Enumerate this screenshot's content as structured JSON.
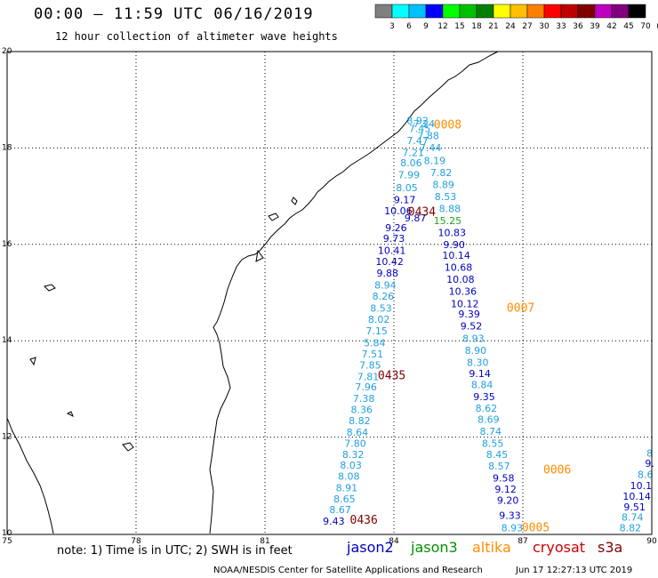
{
  "title": "00:00 – 11:59 UTC 06/16/2019",
  "subtitle": "12 hour collection of altimeter wave heights",
  "colorbar": {
    "colors": [
      "#808080",
      "#00ffff",
      "#00bfff",
      "#0000ff",
      "#00ff00",
      "#00c000",
      "#008000",
      "#ffff00",
      "#ffc000",
      "#ff8000",
      "#ff0000",
      "#c00000",
      "#800000",
      "#c000c0",
      "#800080",
      "#000000"
    ],
    "labels": [
      "3",
      "6",
      "9",
      "12",
      "15",
      "18",
      "21",
      "24",
      "27",
      "30",
      "33",
      "36",
      "39",
      "42",
      "45",
      "70",
      "(ft)"
    ]
  },
  "axes": {
    "x_ticks": [
      "75",
      "78",
      "81",
      "84",
      "87",
      "90"
    ],
    "y_ticks": [
      "20",
      "18",
      "16",
      "14",
      "12",
      "10"
    ]
  },
  "colors": {
    "jason2": "#0000c0",
    "jason3": "#009000",
    "altika": "#ff8c00",
    "cryosat": "#cc0000",
    "s3a": "#800000",
    "light": "#20a0e0",
    "green": "#20a020",
    "darkred": "#800000"
  },
  "tracks": [
    {
      "label": "0008",
      "label_color": "orange",
      "lon": 85.25,
      "lat": 18.4
    },
    {
      "label": "0434",
      "label_color": "darkred",
      "lon": 84.65,
      "lat": 16.6
    },
    {
      "label": "0007",
      "label_color": "orange",
      "lon": 86.95,
      "lat": 14.6
    },
    {
      "label": "0435",
      "label_color": "darkred",
      "lon": 83.95,
      "lat": 13.2
    },
    {
      "label": "0006",
      "label_color": "orange",
      "lon": 87.8,
      "lat": 11.25
    },
    {
      "label": "0436",
      "label_color": "darkred",
      "lon": 83.3,
      "lat": 10.2
    },
    {
      "label": "0005",
      "label_color": "orange",
      "lon": 87.3,
      "lat": 10.05
    }
  ],
  "values": [
    {
      "v": "8.92",
      "c": "light",
      "lon": 84.55,
      "lat": 18.5
    },
    {
      "v": "7.24",
      "c": "light",
      "lon": 84.7,
      "lat": 18.43
    },
    {
      "v": "7.45",
      "c": "light",
      "lon": 84.6,
      "lat": 18.33
    },
    {
      "v": "7.88",
      "c": "light",
      "lon": 84.8,
      "lat": 18.18
    },
    {
      "v": "7.47",
      "c": "light",
      "lon": 84.55,
      "lat": 18.08
    },
    {
      "v": "7.44",
      "c": "light",
      "lon": 84.85,
      "lat": 17.93
    },
    {
      "v": "7.21",
      "c": "light",
      "lon": 84.45,
      "lat": 17.83
    },
    {
      "v": "8.19",
      "c": "light",
      "lon": 84.95,
      "lat": 17.67
    },
    {
      "v": "8.06",
      "c": "light",
      "lon": 84.4,
      "lat": 17.62
    },
    {
      "v": "7.82",
      "c": "light",
      "lon": 85.1,
      "lat": 17.42
    },
    {
      "v": "7.99",
      "c": "light",
      "lon": 84.35,
      "lat": 17.37
    },
    {
      "v": "8.89",
      "c": "light",
      "lon": 85.15,
      "lat": 17.17
    },
    {
      "v": "8.05",
      "c": "light",
      "lon": 84.3,
      "lat": 17.1
    },
    {
      "v": "8.53",
      "c": "light",
      "lon": 85.2,
      "lat": 16.92
    },
    {
      "v": "9.17",
      "c": "jason2",
      "lon": 84.25,
      "lat": 16.85
    },
    {
      "v": "10.06",
      "c": "jason2",
      "lon": 84.1,
      "lat": 16.62
    },
    {
      "v": "8.88",
      "c": "light",
      "lon": 85.3,
      "lat": 16.67
    },
    {
      "v": "9.87",
      "c": "jason2",
      "lon": 84.5,
      "lat": 16.48
    },
    {
      "v": "15.25",
      "c": "green",
      "lon": 85.25,
      "lat": 16.42
    },
    {
      "v": "9.26",
      "c": "jason2",
      "lon": 84.05,
      "lat": 16.27
    },
    {
      "v": "10.83",
      "c": "jason2",
      "lon": 85.35,
      "lat": 16.17
    },
    {
      "v": "9.73",
      "c": "jason2",
      "lon": 84.0,
      "lat": 16.05
    },
    {
      "v": "9.90",
      "c": "jason2",
      "lon": 85.4,
      "lat": 15.92
    },
    {
      "v": "10.41",
      "c": "jason2",
      "lon": 83.95,
      "lat": 15.8
    },
    {
      "v": "10.14",
      "c": "jason2",
      "lon": 85.45,
      "lat": 15.7
    },
    {
      "v": "10.42",
      "c": "jason2",
      "lon": 83.9,
      "lat": 15.57
    },
    {
      "v": "10.68",
      "c": "jason2",
      "lon": 85.5,
      "lat": 15.45
    },
    {
      "v": "9.88",
      "c": "jason2",
      "lon": 83.85,
      "lat": 15.33
    },
    {
      "v": "10.08",
      "c": "jason2",
      "lon": 85.55,
      "lat": 15.2
    },
    {
      "v": "8.94",
      "c": "light",
      "lon": 83.8,
      "lat": 15.08
    },
    {
      "v": "10.36",
      "c": "jason2",
      "lon": 85.6,
      "lat": 14.95
    },
    {
      "v": "8.26",
      "c": "light",
      "lon": 83.75,
      "lat": 14.85
    },
    {
      "v": "10.12",
      "c": "jason2",
      "lon": 85.65,
      "lat": 14.7
    },
    {
      "v": "8.53",
      "c": "light",
      "lon": 83.7,
      "lat": 14.6
    },
    {
      "v": "9.39",
      "c": "jason2",
      "lon": 85.75,
      "lat": 14.48
    },
    {
      "v": "8.02",
      "c": "light",
      "lon": 83.65,
      "lat": 14.37
    },
    {
      "v": "9.52",
      "c": "jason2",
      "lon": 85.8,
      "lat": 14.23
    },
    {
      "v": "7.15",
      "c": "light",
      "lon": 83.6,
      "lat": 14.13
    },
    {
      "v": "8.93",
      "c": "light",
      "lon": 85.85,
      "lat": 13.98
    },
    {
      "v": "5.84",
      "c": "light",
      "lon": 83.55,
      "lat": 13.88
    },
    {
      "v": "8.90",
      "c": "light",
      "lon": 85.9,
      "lat": 13.73
    },
    {
      "v": "7.51",
      "c": "light",
      "lon": 83.5,
      "lat": 13.65
    },
    {
      "v": "8.30",
      "c": "light",
      "lon": 85.95,
      "lat": 13.48
    },
    {
      "v": "7.85",
      "c": "light",
      "lon": 83.45,
      "lat": 13.42
    },
    {
      "v": "9.14",
      "c": "jason2",
      "lon": 86.0,
      "lat": 13.25
    },
    {
      "v": "7.81",
      "c": "light",
      "lon": 83.4,
      "lat": 13.18
    },
    {
      "v": "8.84",
      "c": "light",
      "lon": 86.05,
      "lat": 13.02
    },
    {
      "v": "7.96",
      "c": "light",
      "lon": 83.35,
      "lat": 12.97
    },
    {
      "v": "9.35",
      "c": "jason2",
      "lon": 86.1,
      "lat": 12.77
    },
    {
      "v": "7.38",
      "c": "light",
      "lon": 83.3,
      "lat": 12.73
    },
    {
      "v": "8.62",
      "c": "light",
      "lon": 86.15,
      "lat": 12.53
    },
    {
      "v": "8.36",
      "c": "light",
      "lon": 83.25,
      "lat": 12.5
    },
    {
      "v": "8.69",
      "c": "light",
      "lon": 86.2,
      "lat": 12.3
    },
    {
      "v": "8.82",
      "c": "light",
      "lon": 83.2,
      "lat": 12.27
    },
    {
      "v": "8.74",
      "c": "light",
      "lon": 86.25,
      "lat": 12.05
    },
    {
      "v": "8.64",
      "c": "light",
      "lon": 83.15,
      "lat": 12.03
    },
    {
      "v": "8.55",
      "c": "light",
      "lon": 86.3,
      "lat": 11.8
    },
    {
      "v": "7.80",
      "c": "light",
      "lon": 83.1,
      "lat": 11.8
    },
    {
      "v": "8.45",
      "c": "light",
      "lon": 86.4,
      "lat": 11.57
    },
    {
      "v": "8.32",
      "c": "light",
      "lon": 83.05,
      "lat": 11.57
    },
    {
      "v": "8.57",
      "c": "light",
      "lon": 86.45,
      "lat": 11.33
    },
    {
      "v": "8.03",
      "c": "light",
      "lon": 83.0,
      "lat": 11.35
    },
    {
      "v": "9.58",
      "c": "jason2",
      "lon": 86.55,
      "lat": 11.08
    },
    {
      "v": "8.08",
      "c": "light",
      "lon": 82.95,
      "lat": 11.12
    },
    {
      "v": "9.12",
      "c": "jason2",
      "lon": 86.6,
      "lat": 10.85
    },
    {
      "v": "8.91",
      "c": "light",
      "lon": 82.9,
      "lat": 10.88
    },
    {
      "v": "9.20",
      "c": "jason2",
      "lon": 86.65,
      "lat": 10.62
    },
    {
      "v": "8.65",
      "c": "light",
      "lon": 82.85,
      "lat": 10.65
    },
    {
      "v": "9.33",
      "c": "jason2",
      "lon": 86.7,
      "lat": 10.3
    },
    {
      "v": "8.67",
      "c": "light",
      "lon": 82.75,
      "lat": 10.42
    },
    {
      "v": "8.93",
      "c": "light",
      "lon": 86.75,
      "lat": 10.05
    },
    {
      "v": "9.43",
      "c": "jason2",
      "lon": 82.6,
      "lat": 10.18
    },
    {
      "v": "8",
      "c": "light",
      "lon": 89.95,
      "lat": 11.6
    },
    {
      "v": "9.",
      "c": "jason2",
      "lon": 89.95,
      "lat": 11.38
    },
    {
      "v": "8.6",
      "c": "light",
      "lon": 89.85,
      "lat": 11.15
    },
    {
      "v": "10.1",
      "c": "jason2",
      "lon": 89.75,
      "lat": 10.92
    },
    {
      "v": "10.14",
      "c": "jason2",
      "lon": 89.65,
      "lat": 10.7
    },
    {
      "v": "9.51",
      "c": "jason2",
      "lon": 89.6,
      "lat": 10.48
    },
    {
      "v": "8.74",
      "c": "light",
      "lon": 89.55,
      "lat": 10.27
    },
    {
      "v": "8.82",
      "c": "light",
      "lon": 89.5,
      "lat": 10.05
    }
  ],
  "note": "note: 1) Time is in UTC; 2) SWH is in feet",
  "legend": [
    "jason2",
    "jason3",
    "altika",
    "cryosat",
    "s3a"
  ],
  "footer_left": "NOAA/NESDIS Center for Satellite Applications and Research",
  "footer_right": "Jun 17 12:27:13 UTC 2019"
}
